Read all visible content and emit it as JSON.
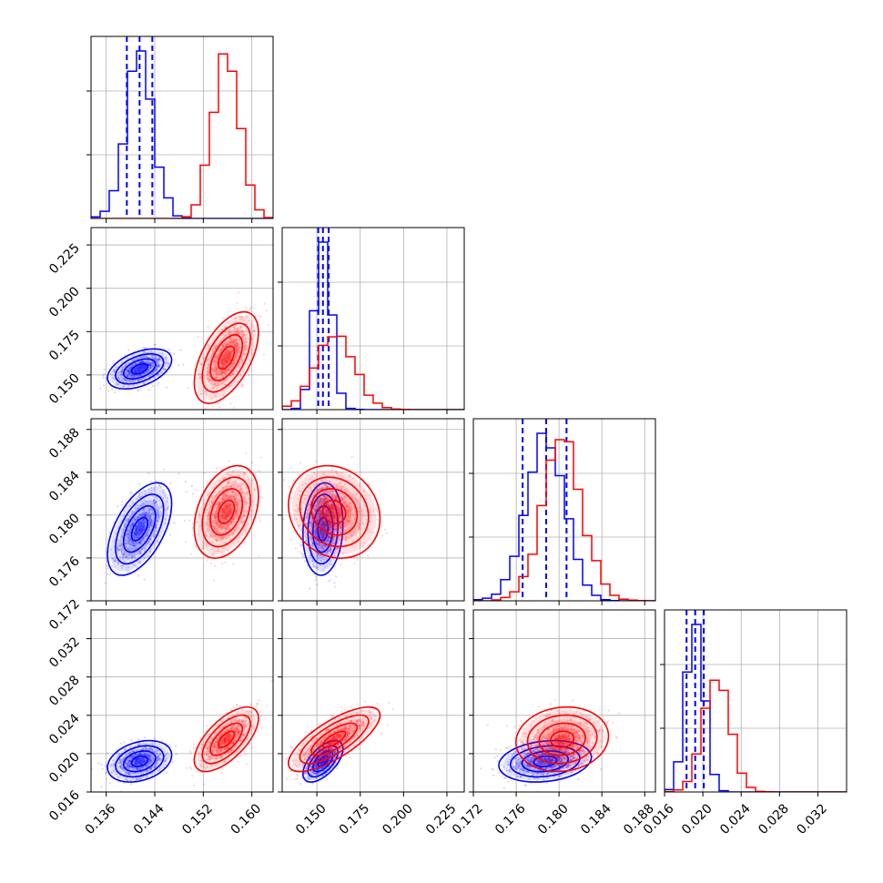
{
  "chart_data": {
    "type": "corner",
    "colors": {
      "series_a": "#0000ff",
      "series_b": "#ff0000"
    },
    "grid": true,
    "parameters": [
      {
        "ticks": [
          0.136,
          0.144,
          0.152,
          0.16
        ],
        "tick_labels": [
          "0.136",
          "0.144",
          "0.152",
          "0.160"
        ],
        "range": [
          0.1335,
          0.1635
        ]
      },
      {
        "ticks": [
          0.15,
          0.175,
          0.2,
          0.225
        ],
        "tick_labels": [
          "0.150",
          "0.175",
          "0.200",
          "0.225"
        ],
        "range": [
          0.13,
          0.235
        ]
      },
      {
        "ticks": [
          0.172,
          0.176,
          0.18,
          0.184,
          0.188
        ],
        "tick_labels": [
          "0.172",
          "0.176",
          "0.180",
          "0.184",
          "0.188"
        ],
        "range": [
          0.172,
          0.189
        ]
      },
      {
        "ticks": [
          0.016,
          0.02,
          0.024,
          0.028,
          0.032
        ],
        "tick_labels": [
          "0.016",
          "0.020",
          "0.024",
          "0.028",
          "0.032"
        ],
        "range": [
          0.016,
          0.035
        ]
      }
    ],
    "series": [
      {
        "color": "#0000ff",
        "means": [
          0.1415,
          0.1535,
          0.1787,
          0.0192
        ],
        "sds": [
          0.0022,
          0.0048,
          0.0018,
          0.0009
        ],
        "correlations": [
          [
            0,
            1,
            0.45
          ],
          [
            0,
            2,
            0.55
          ],
          [
            0,
            3,
            0.3
          ],
          [
            1,
            2,
            0.1
          ],
          [
            1,
            3,
            0.6
          ],
          [
            2,
            3,
            0.2
          ]
        ],
        "quantile_lines": [
          [
            0.1394,
            0.1415,
            0.1436
          ],
          [
            0.1508,
            0.1535,
            0.1568
          ],
          [
            0.1766,
            0.1788,
            0.1807
          ],
          [
            0.0183,
            0.0192,
            0.0201
          ]
        ]
      },
      {
        "color": "#ff0000",
        "means": [
          0.1558,
          0.16,
          0.1803,
          0.0215
        ],
        "sds": [
          0.0022,
          0.011,
          0.0018,
          0.0014
        ],
        "correlations": [
          [
            0,
            1,
            0.55
          ],
          [
            0,
            2,
            0.35
          ],
          [
            0,
            3,
            0.65
          ],
          [
            1,
            2,
            -0.15
          ],
          [
            1,
            3,
            0.75
          ],
          [
            2,
            3,
            0.1
          ]
        ],
        "quantile_lines": []
      }
    ]
  }
}
